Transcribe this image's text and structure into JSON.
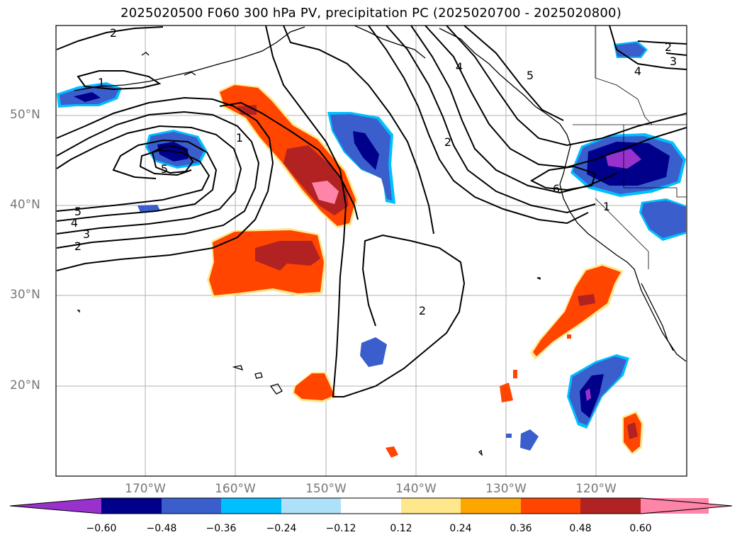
{
  "title": "2025020500 F060 300 hPa PV, precipitation PC (2025020700 - 2025020800)",
  "lat_labels": [
    "50°N",
    "40°N",
    "30°N",
    "20°N"
  ],
  "lon_labels": [
    "170°W",
    "160°W",
    "150°W",
    "140°W",
    "130°W",
    "120°W"
  ],
  "contour_labels": [
    "2",
    "1",
    "5",
    "1",
    "5",
    "4",
    "3",
    "2",
    "4",
    "5",
    "2",
    "2",
    "3",
    "4",
    "6",
    "1",
    "2"
  ],
  "colorbar": {
    "labels": [
      "−0.60",
      "−0.48",
      "−0.36",
      "−0.24",
      "−0.12",
      "0.12",
      "0.24",
      "0.36",
      "0.48",
      "0.60"
    ],
    "colors": [
      "#9932cc",
      "#00008b",
      "#3a5fcd",
      "#00bfff",
      "#afe0fa",
      "#ffffff",
      "#ffe88c",
      "#ffa500",
      "#ff4500",
      "#b22222",
      "#ff85a8"
    ]
  }
}
